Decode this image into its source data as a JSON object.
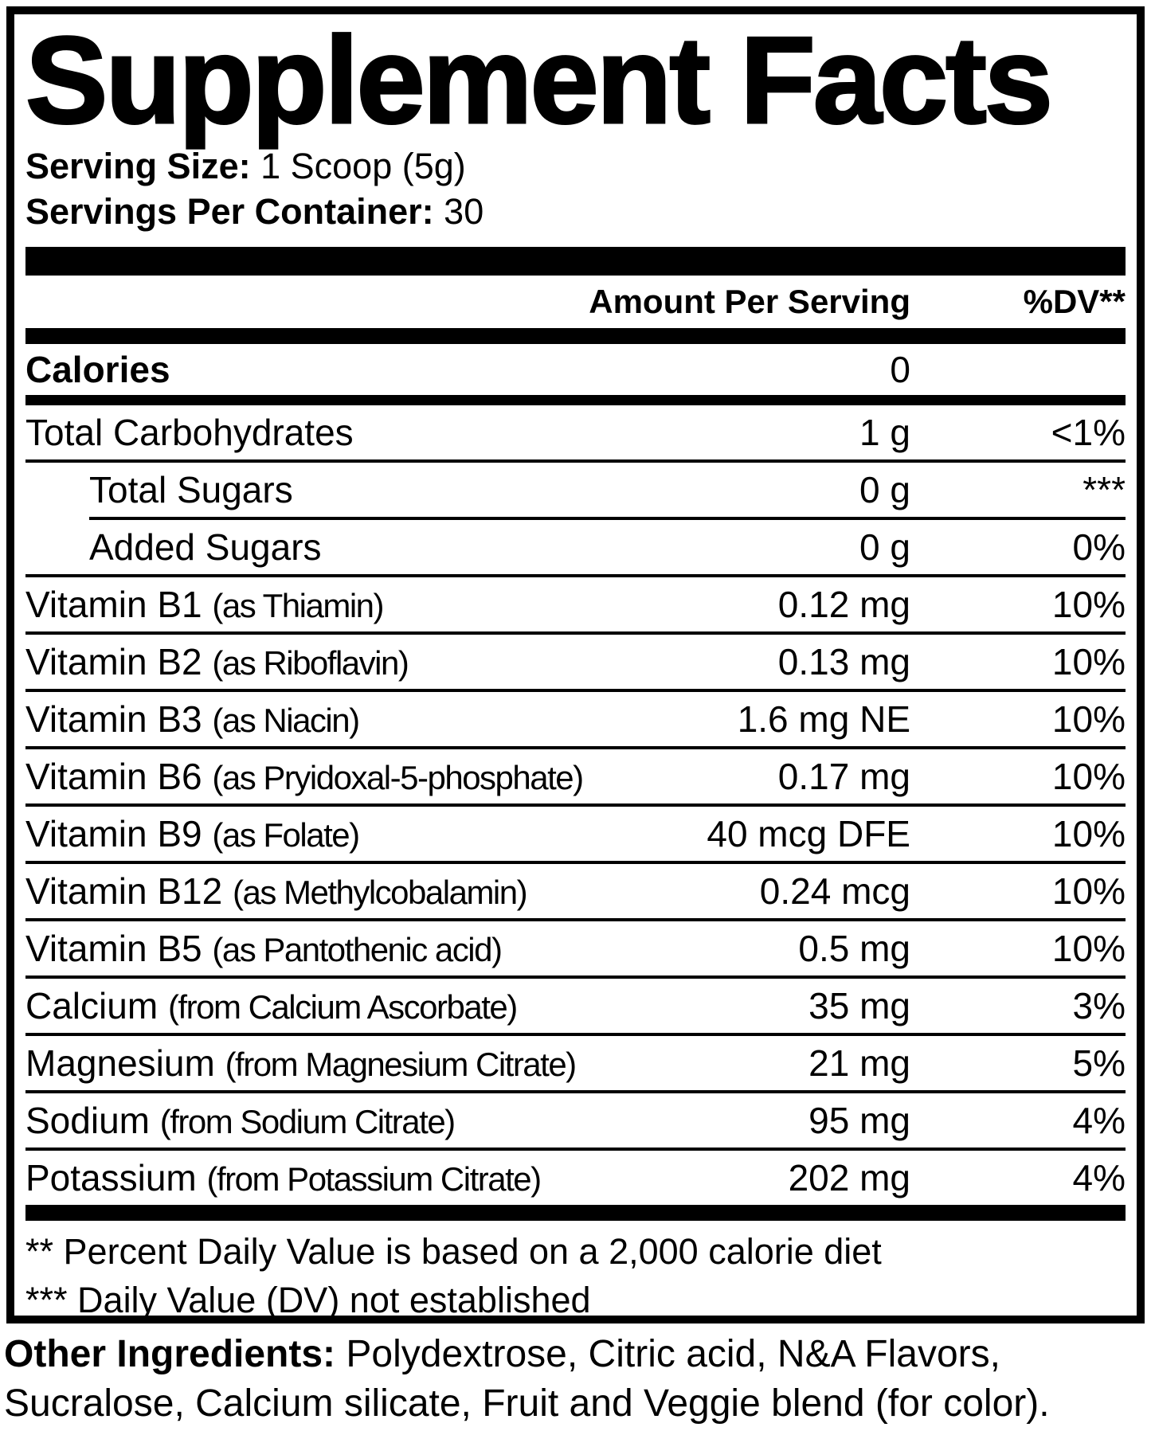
{
  "colors": {
    "ink": "#000000",
    "paper": "#ffffff"
  },
  "title": "Supplement Facts",
  "serving": {
    "size_label": "Serving Size:",
    "size_value": "1 Scoop (5g)",
    "per_container_label": "Servings Per Container:",
    "per_container_value": "30"
  },
  "columns": {
    "amount_header": "Amount Per Serving",
    "dv_header": "%DV**"
  },
  "calories": {
    "name": "Calories",
    "amount": "0",
    "dv": ""
  },
  "nutrients": [
    {
      "name": "Total Carbohydrates",
      "detail": "",
      "amount": "1 g",
      "dv": "<1%"
    },
    {
      "name": "Total Sugars",
      "detail": "",
      "amount": "0 g",
      "dv": "***"
    },
    {
      "name": "Added Sugars",
      "detail": "",
      "amount": "0 g",
      "dv": "0%"
    },
    {
      "name": "Vitamin B1",
      "detail": "(as Thiamin)",
      "amount": "0.12 mg",
      "dv": "10%"
    },
    {
      "name": "Vitamin B2",
      "detail": "(as Riboflavin)",
      "amount": "0.13 mg",
      "dv": "10%"
    },
    {
      "name": "Vitamin B3",
      "detail": "(as Niacin)",
      "amount": "1.6 mg NE",
      "dv": "10%"
    },
    {
      "name": "Vitamin B6",
      "detail": "(as Pryidoxal-5-phosphate)",
      "amount": "0.17 mg",
      "dv": "10%"
    },
    {
      "name": "Vitamin B9",
      "detail": "(as Folate)",
      "amount": "40 mcg DFE",
      "dv": "10%"
    },
    {
      "name": "Vitamin B12",
      "detail": "(as Methylcobalamin)",
      "amount": "0.24 mcg",
      "dv": "10%"
    },
    {
      "name": "Vitamin B5",
      "detail": "(as Pantothenic acid)",
      "amount": "0.5 mg",
      "dv": "10%"
    },
    {
      "name": "Calcium",
      "detail": "(from Calcium Ascorbate)",
      "amount": "35 mg",
      "dv": "3%"
    },
    {
      "name": "Magnesium",
      "detail": "(from Magnesium Citrate)",
      "amount": "21 mg",
      "dv": "5%"
    },
    {
      "name": "Sodium",
      "detail": "(from Sodium Citrate)",
      "amount": "95 mg",
      "dv": "4%"
    },
    {
      "name": "Potassium",
      "detail": "(from Potassium Citrate)",
      "amount": "202 mg",
      "dv": "4%"
    }
  ],
  "footnotes": {
    "dv_basis": "** Percent Daily Value is based on a 2,000 calorie diet",
    "dv_not_established": "*** Daily Value (DV) not established"
  },
  "other_ingredients": {
    "label": "Other Ingredients:",
    "line1": "Polydextrose, Citric acid, N&A Flavors,",
    "line2": "Sucralose, Calcium silicate, Fruit and Veggie blend (for color)."
  }
}
